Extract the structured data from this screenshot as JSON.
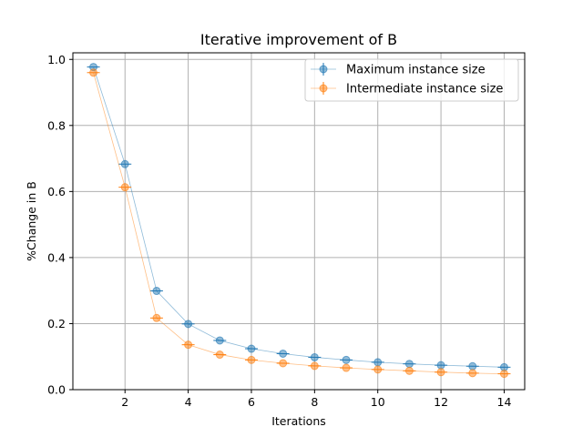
{
  "chart_data": {
    "type": "line",
    "title": "Iterative improvement of B",
    "xlabel": "Iterations",
    "ylabel": "%Change in B",
    "xlim": [
      0.35,
      14.65
    ],
    "ylim": [
      0,
      1.02
    ],
    "x_ticks": [
      2,
      4,
      6,
      8,
      10,
      12,
      14
    ],
    "x_tick_labels": [
      "2",
      "4",
      "6",
      "8",
      "10",
      "12",
      "14"
    ],
    "y_ticks": [
      0,
      0.2,
      0.4,
      0.6,
      0.8,
      1.0
    ],
    "y_tick_labels": [
      "0.0",
      "0.2",
      "0.4",
      "0.6",
      "0.8",
      "1.0"
    ],
    "grid": true,
    "legend_position": "top-right",
    "x": [
      1,
      2,
      3,
      4,
      5,
      6,
      7,
      8,
      9,
      10,
      11,
      12,
      13,
      14
    ],
    "series": [
      {
        "name": "Maximum instance size",
        "color": "#1f77b4",
        "marker": "circle-with-error-bars",
        "values": [
          0.977,
          0.683,
          0.299,
          0.199,
          0.149,
          0.124,
          0.109,
          0.098,
          0.09,
          0.083,
          0.078,
          0.074,
          0.071,
          0.068
        ]
      },
      {
        "name": "Intermediate instance size",
        "color": "#ff7f0e",
        "marker": "circle-with-error-bars",
        "values": [
          0.96,
          0.613,
          0.217,
          0.136,
          0.106,
          0.09,
          0.08,
          0.072,
          0.066,
          0.061,
          0.057,
          0.053,
          0.05,
          0.048
        ]
      }
    ]
  }
}
